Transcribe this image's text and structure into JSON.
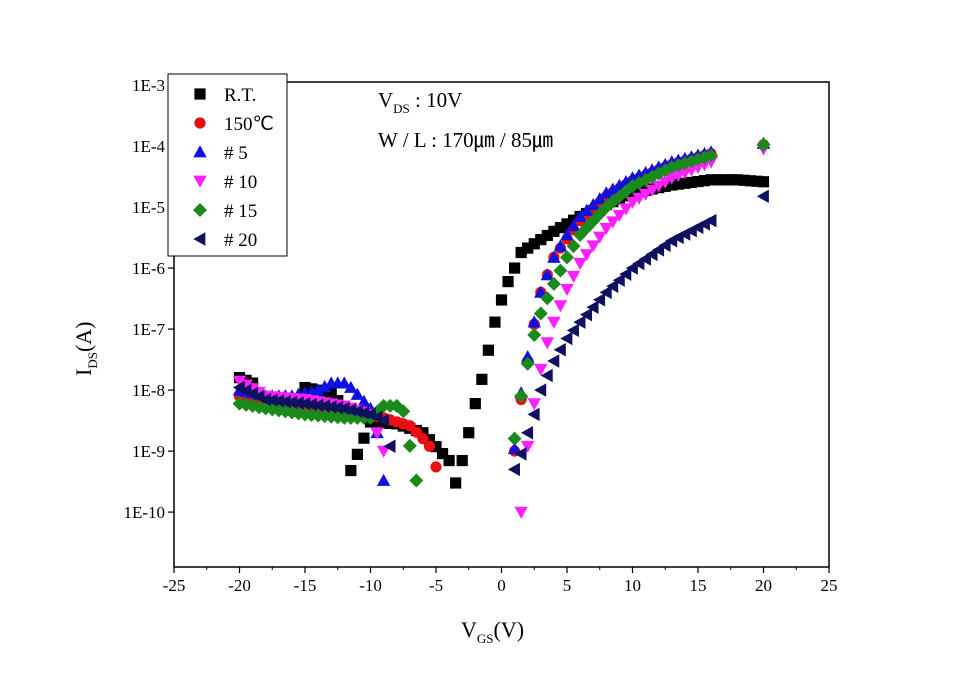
{
  "chart_data": {
    "type": "scatter",
    "xlabel": {
      "main": "V",
      "sub": "GS",
      "tail": "(V)"
    },
    "ylabel": {
      "main": "I",
      "sub": "DS",
      "tail": "(A)"
    },
    "xlim": [
      -25,
      25
    ],
    "ylim_log10": [
      -10.9,
      -2.95
    ],
    "yscale": "log",
    "x_ticks": [
      -25,
      -20,
      -15,
      -10,
      -5,
      0,
      5,
      10,
      15,
      20,
      25
    ],
    "y_ticks": [
      {
        "exp": -3,
        "label": "1E-3"
      },
      {
        "exp": -4,
        "label": "1E-4"
      },
      {
        "exp": -5,
        "label": "1E-5"
      },
      {
        "exp": -6,
        "label": "1E-6"
      },
      {
        "exp": -7,
        "label": "1E-7"
      },
      {
        "exp": -8,
        "label": "1E-8"
      },
      {
        "exp": -9,
        "label": "1E-9"
      },
      {
        "exp": -10,
        "label": "1E-10"
      }
    ],
    "annotations": {
      "line1": {
        "main": "V",
        "sub": "DS",
        "tail": " : 10V"
      },
      "line2": "W / L : 170㎛ / 85㎛"
    },
    "series": [
      {
        "name": "R.T.",
        "marker": "square",
        "color": "#000000",
        "anchors": [
          [
            -20,
            1.6e-08
          ],
          [
            -19,
            1.3e-08
          ],
          [
            -15,
            1.1e-08
          ],
          [
            -13,
            9e-09
          ],
          [
            -12,
            5e-09
          ],
          [
            -11.5,
            4.8e-10
          ],
          [
            -10,
            3e-09
          ],
          [
            -8,
            2.8e-09
          ],
          [
            -6,
            2e-09
          ],
          [
            -4,
            7e-10
          ],
          [
            -3.5,
            3e-10
          ],
          [
            -3,
            7e-10
          ],
          [
            -2.5,
            2e-09
          ],
          [
            -2,
            6e-09
          ],
          [
            -1.5,
            1.5e-08
          ],
          [
            -1,
            4.5e-08
          ],
          [
            -0.5,
            1.3e-07
          ],
          [
            0,
            3e-07
          ],
          [
            0.5,
            6e-07
          ],
          [
            1,
            1e-06
          ],
          [
            1.5,
            1.8e-06
          ],
          [
            2.5,
            2.5e-06
          ],
          [
            4,
            4e-06
          ],
          [
            6,
            7e-06
          ],
          [
            8,
            1.1e-05
          ],
          [
            10,
            1.7e-05
          ],
          [
            13,
            2.3e-05
          ],
          [
            16,
            2.8e-05
          ],
          [
            18,
            2.8e-05
          ],
          [
            20,
            2.6e-05
          ]
        ]
      },
      {
        "name": "150℃",
        "marker": "circle",
        "color": "#e81010",
        "anchors": [
          [
            -20,
            8e-09
          ],
          [
            -18,
            6.5e-09
          ],
          [
            -15,
            5.5e-09
          ],
          [
            -12,
            4.5e-09
          ],
          [
            -9,
            3.5e-09
          ],
          [
            -7,
            2.6e-09
          ],
          [
            -6,
            1.6e-09
          ],
          [
            -5.5,
            1.2e-09
          ],
          [
            -5,
            5.5e-10
          ],
          [
            1,
            1e-09
          ],
          [
            1.5,
            7e-09
          ],
          [
            2,
            3e-08
          ],
          [
            2.5,
            1.2e-07
          ],
          [
            3,
            4e-07
          ],
          [
            4,
            1.5e-06
          ],
          [
            6,
            6e-06
          ],
          [
            8,
            1.5e-05
          ],
          [
            10,
            2.7e-05
          ],
          [
            13,
            5e-05
          ],
          [
            16,
            7.5e-05
          ],
          [
            20,
            0.000105
          ]
        ]
      },
      {
        "name": "# 5",
        "marker": "triangle-up",
        "color": "#1010e0",
        "anchors": [
          [
            -20,
            1e-08
          ],
          [
            -18,
            8e-09
          ],
          [
            -16,
            8e-09
          ],
          [
            -14,
            1e-08
          ],
          [
            -13,
            1.3e-08
          ],
          [
            -12,
            1.3e-08
          ],
          [
            -11.5,
            1.1e-08
          ],
          [
            -10,
            5e-09
          ],
          [
            -9.5,
            2e-09
          ],
          [
            -9,
            3.3e-10
          ],
          [
            1,
            1.1e-09
          ],
          [
            1.5,
            9e-09
          ],
          [
            2,
            3.5e-08
          ],
          [
            2.5,
            1.3e-07
          ],
          [
            3,
            4e-07
          ],
          [
            4,
            1.5e-06
          ],
          [
            5,
            3.5e-06
          ],
          [
            6,
            7e-06
          ],
          [
            8,
            1.7e-05
          ],
          [
            10,
            3e-05
          ],
          [
            13,
            5.5e-05
          ],
          [
            16,
            8e-05
          ],
          [
            20,
            0.00011
          ]
        ]
      },
      {
        "name": "# 10",
        "marker": "triangle-down",
        "color": "#ff20ff",
        "anchors": [
          [
            -20,
            1.4e-08
          ],
          [
            -18,
            8e-09
          ],
          [
            -15,
            7e-09
          ],
          [
            -12,
            5.5e-09
          ],
          [
            -10,
            4e-09
          ],
          [
            -9,
            1e-09
          ],
          [
            1.5,
            1e-10
          ],
          [
            2,
            1.2e-09
          ],
          [
            2.5,
            6e-09
          ],
          [
            3,
            2.2e-08
          ],
          [
            3.5,
            6e-08
          ],
          [
            4,
            1.3e-07
          ],
          [
            5,
            4.5e-07
          ],
          [
            6,
            1.2e-06
          ],
          [
            8,
            4.5e-06
          ],
          [
            10,
            1.2e-05
          ],
          [
            13,
            3e-05
          ],
          [
            16,
            5.5e-05
          ],
          [
            20,
            9e-05
          ]
        ]
      },
      {
        "name": "# 15",
        "marker": "diamond",
        "color": "#1a8a1a",
        "anchors": [
          [
            -20,
            6e-09
          ],
          [
            -18,
            5e-09
          ],
          [
            -15,
            4e-09
          ],
          [
            -12,
            3.5e-09
          ],
          [
            -10,
            3.5e-09
          ],
          [
            -9,
            5.5e-09
          ],
          [
            -8,
            5.5e-09
          ],
          [
            -7.5,
            4.5e-09
          ],
          [
            -6.5,
            3.3e-10
          ],
          [
            1,
            1.6e-09
          ],
          [
            1.5,
            8e-09
          ],
          [
            2,
            2.7e-08
          ],
          [
            2.5,
            8e-08
          ],
          [
            3,
            1.8e-07
          ],
          [
            3.5,
            3.2e-07
          ],
          [
            4,
            5.5e-07
          ],
          [
            5,
            1.5e-06
          ],
          [
            6,
            3.5e-06
          ],
          [
            8,
            1e-05
          ],
          [
            10,
            2.2e-05
          ],
          [
            13,
            4.5e-05
          ],
          [
            16,
            7e-05
          ],
          [
            20,
            0.000105
          ]
        ]
      },
      {
        "name": "# 20",
        "marker": "triangle-left",
        "color": "#101060",
        "anchors": [
          [
            -20,
            1.1e-08
          ],
          [
            -18,
            7e-09
          ],
          [
            -15,
            6e-09
          ],
          [
            -12,
            5e-09
          ],
          [
            -10,
            4e-09
          ],
          [
            -9,
            3.2e-09
          ],
          [
            -8.5,
            1.2e-09
          ],
          [
            1,
            5e-10
          ],
          [
            1.5,
            9e-10
          ],
          [
            2,
            2e-09
          ],
          [
            2.5,
            4e-09
          ],
          [
            3,
            1e-08
          ],
          [
            4,
            3e-08
          ],
          [
            5,
            7e-08
          ],
          [
            6,
            1.3e-07
          ],
          [
            8,
            4e-07
          ],
          [
            10,
            1e-06
          ],
          [
            13,
            2.8e-06
          ],
          [
            16,
            6e-06
          ],
          [
            20,
            1.5e-05
          ]
        ]
      }
    ]
  }
}
